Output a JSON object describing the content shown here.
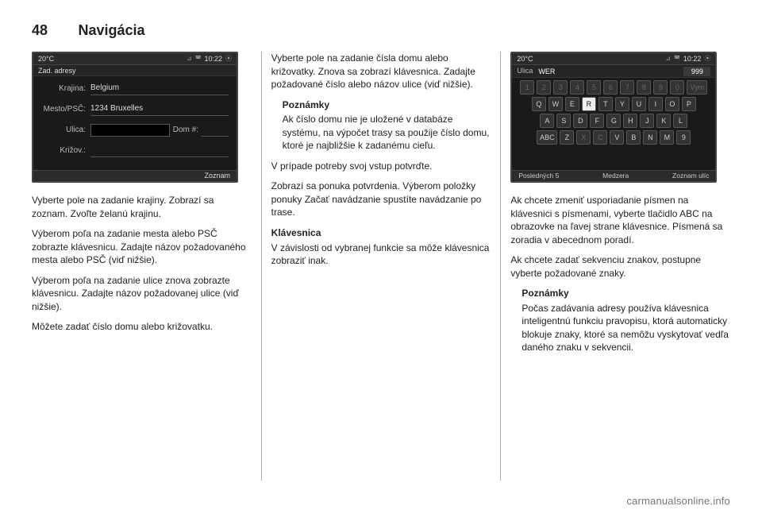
{
  "header": {
    "page_number": "48",
    "section": "Navigácia"
  },
  "watermark": "carmanualsonline.info",
  "col1": {
    "screen": {
      "status_left": "20°C",
      "status_time": "10:22",
      "title": "Zad. adresy",
      "rows": {
        "country_lbl": "Krajina:",
        "country_val": "Belgium",
        "city_lbl": "Mesto/PSČ:",
        "city_val": "1234 Bruxelles",
        "street_lbl": "Ulica:",
        "street_val": "",
        "house_lbl": "Dom #:",
        "house_val": "",
        "cross_lbl": "Križov.:",
        "cross_val": ""
      },
      "bottom_right": "Zoznam"
    },
    "p1": "Vyberte pole na zadanie krajiny. Zobrazí sa zoznam. Zvoľte želanú krajinu.",
    "p2": "Výberom poľa na zadanie mesta alebo PSČ zobrazte klávesnicu. Zadajte názov požadovaného mesta alebo PSČ (viď nižšie).",
    "p3": "Výberom poľa na zadanie ulice znova zobrazte klávesnicu. Zadajte názov požadovanej ulice (viď nižšie).",
    "p4": "Môžete zadať číslo domu alebo križovatku."
  },
  "col2": {
    "p1": "Vyberte pole na zadanie čísla domu alebo križovatky. Znova sa zobrazí klávesnica. Zadajte požadované číslo alebo názov ulice (viď nižšie).",
    "note_head": "Poznámky",
    "note_body": "Ak číslo domu nie je uložené v databáze systému, na výpočet trasy sa použije číslo domu, ktoré je najbližšie k zadanému cieľu.",
    "p2": "V prípade potreby svoj vstup potvrďte.",
    "p3": "Zobrazí sa ponuka potvrdenia. Výberom položky ponuky Začať navádzanie spustíte navádzanie po trase.",
    "sub_head": "Klávesnica",
    "p4": "V závislosti od vybranej funkcie sa môže klávesnica zobraziť inak."
  },
  "col3": {
    "screen": {
      "status_left": "20°C",
      "status_time": "10:22",
      "field_label": "Ulica",
      "field_value": "WER",
      "num_value": "999",
      "num_row": [
        "1",
        "2",
        "3",
        "4",
        "5",
        "6",
        "7",
        "8",
        "9",
        "0"
      ],
      "num_row_end": "Vym",
      "row_q": [
        "Q",
        "W",
        "E",
        "R",
        "T",
        "Y",
        "U",
        "I",
        "O",
        "P"
      ],
      "row_a": [
        "A",
        "S",
        "D",
        "F",
        "G",
        "H",
        "J",
        "K",
        "L"
      ],
      "row_z": [
        "ABC",
        "Z",
        "X",
        "C",
        "V",
        "B",
        "N",
        "M",
        "9"
      ],
      "bottom_left": "Posledných 5",
      "bottom_mid": "Medzera",
      "bottom_right": "Zoznam ulíc",
      "highlighted_key": "R"
    },
    "p1": "Ak chcete zmeniť usporiadanie písmen na klávesnici s písmenami, vyberte tlačidlo ABC na obrazovke na ľavej strane klávesnice. Písmená sa zoradia v abecednom poradí.",
    "p2": "Ak chcete zadať sekvenciu znakov, postupne vyberte požadované znaky.",
    "note_head": "Poznámky",
    "note_body": "Počas zadávania adresy používa klávesnica inteligentnú funkciu pravopisu, ktorá automaticky blokuje znaky, ktoré sa nemôžu vyskytovať vedľa daného znaku v sekvencii."
  }
}
